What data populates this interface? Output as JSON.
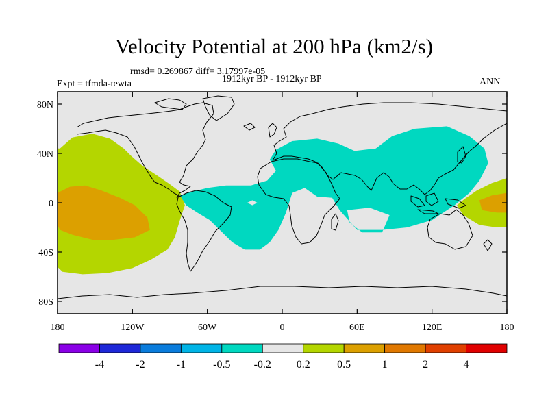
{
  "title": "Velocity Potential at 200 hPa (km2/s)",
  "stats": "rmsd= 0.269867 diff= 3.17997e-05",
  "left_label": "Expt = tfmda-tewta",
  "center_label": "1912kyr BP - 1912kyr BP",
  "right_label": "ANN",
  "map": {
    "lon_range": [
      -180,
      180
    ],
    "lat_range": [
      -90,
      90
    ],
    "x_ticks": [
      {
        "lon": -180,
        "label": "180"
      },
      {
        "lon": -120,
        "label": "120W"
      },
      {
        "lon": -60,
        "label": "60W"
      },
      {
        "lon": 0,
        "label": "0"
      },
      {
        "lon": 60,
        "label": "60E"
      },
      {
        "lon": 120,
        "label": "120E"
      },
      {
        "lon": 180,
        "label": "180"
      }
    ],
    "y_ticks": [
      {
        "lat": 80,
        "label": "80N"
      },
      {
        "lat": 40,
        "label": "40N"
      },
      {
        "lat": 0,
        "label": "0"
      },
      {
        "lat": -40,
        "label": "40S"
      },
      {
        "lat": -80,
        "label": "80S"
      }
    ],
    "regions": [
      {
        "name": "pacific-positive-0.2-0.5",
        "category": "0.2 to 0.5",
        "color": "#b4d600",
        "points": [
          [
            -178,
            44
          ],
          [
            -168,
            53
          ],
          [
            -152,
            56
          ],
          [
            -138,
            52
          ],
          [
            -127,
            44
          ],
          [
            -121,
            38
          ],
          [
            -112,
            30
          ],
          [
            -100,
            22
          ],
          [
            -90,
            15
          ],
          [
            -82,
            9
          ],
          [
            -78,
            -2
          ],
          [
            -82,
            -14
          ],
          [
            -86,
            -28
          ],
          [
            -92,
            -38
          ],
          [
            -105,
            -46
          ],
          [
            -120,
            -53
          ],
          [
            -140,
            -57
          ],
          [
            -160,
            -58
          ],
          [
            -176,
            -56
          ],
          [
            -180,
            -52
          ],
          [
            -180,
            44
          ]
        ]
      },
      {
        "name": "pacific-positive-0.5-1",
        "category": "0.5 to 1",
        "color": "#dca000",
        "points": [
          [
            -180,
            8
          ],
          [
            -170,
            13
          ],
          [
            -158,
            14
          ],
          [
            -145,
            10
          ],
          [
            -130,
            4
          ],
          [
            -118,
            -2
          ],
          [
            -108,
            -12
          ],
          [
            -106,
            -22
          ],
          [
            -118,
            -28
          ],
          [
            -135,
            -30
          ],
          [
            -152,
            -30
          ],
          [
            -168,
            -26
          ],
          [
            -178,
            -22
          ],
          [
            -180,
            -18
          ]
        ]
      },
      {
        "name": "west-pacific-positive-0.2-0.5",
        "category": "0.2 to 0.5",
        "color": "#b4d600",
        "points": [
          [
            180,
            20
          ],
          [
            168,
            16
          ],
          [
            156,
            10
          ],
          [
            146,
            3
          ],
          [
            140,
            -2
          ],
          [
            145,
            -10
          ],
          [
            158,
            -18
          ],
          [
            172,
            -20
          ],
          [
            180,
            -20
          ]
        ]
      },
      {
        "name": "west-pacific-positive-0.5-1",
        "category": "0.5 to 1",
        "color": "#dca000",
        "points": [
          [
            180,
            8
          ],
          [
            168,
            6
          ],
          [
            158,
            2
          ],
          [
            160,
            -6
          ],
          [
            172,
            -8
          ],
          [
            180,
            -8
          ]
        ]
      },
      {
        "name": "atlantic-africa-negative",
        "category": "-0.5 to -0.2",
        "color": "#00d8c0",
        "points": [
          [
            -82,
            6
          ],
          [
            -72,
            9
          ],
          [
            -60,
            12
          ],
          [
            -45,
            14
          ],
          [
            -25,
            14
          ],
          [
            -12,
            18
          ],
          [
            -5,
            26
          ],
          [
            -10,
            35
          ],
          [
            -5,
            43
          ],
          [
            8,
            50
          ],
          [
            28,
            52
          ],
          [
            45,
            48
          ],
          [
            58,
            42
          ],
          [
            75,
            44
          ],
          [
            88,
            54
          ],
          [
            106,
            60
          ],
          [
            132,
            62
          ],
          [
            150,
            54
          ],
          [
            162,
            44
          ],
          [
            165,
            32
          ],
          [
            158,
            18
          ],
          [
            150,
            8
          ],
          [
            138,
            -2
          ],
          [
            120,
            -14
          ],
          [
            100,
            -20
          ],
          [
            80,
            -22
          ],
          [
            60,
            -22
          ],
          [
            46,
            -6
          ],
          [
            40,
            4
          ],
          [
            28,
            5
          ],
          [
            18,
            12
          ],
          [
            8,
            8
          ],
          [
            3,
            -8
          ],
          [
            -3,
            -22
          ],
          [
            -10,
            -32
          ],
          [
            -18,
            -38
          ],
          [
            -30,
            -38
          ],
          [
            -40,
            -32
          ],
          [
            -48,
            -24
          ],
          [
            -58,
            -14
          ],
          [
            -68,
            -8
          ],
          [
            -77,
            -2
          ]
        ],
        "holes": [
          [
            [
              52,
              -6
            ],
            [
              70,
              -4
            ],
            [
              86,
              -10
            ],
            [
              80,
              -24
            ],
            [
              64,
              -24
            ],
            [
              54,
              -16
            ]
          ],
          [
            [
              -28,
              0
            ],
            [
              -24,
              2
            ],
            [
              -20,
              0
            ],
            [
              -24,
              -2
            ]
          ]
        ]
      }
    ],
    "coast_color": "#000000",
    "land_fill": "#e6e6e6"
  },
  "colorbar": {
    "bins": [
      {
        "color": "#8a00e6"
      },
      {
        "color": "#1e28d8"
      },
      {
        "color": "#0a7cdc"
      },
      {
        "color": "#00b4e6"
      },
      {
        "color": "#00d8c0"
      },
      {
        "color": "#e6e6e6"
      },
      {
        "color": "#b4d600"
      },
      {
        "color": "#dca000"
      },
      {
        "color": "#e07800"
      },
      {
        "color": "#e04000"
      },
      {
        "color": "#e00000"
      }
    ],
    "labels": [
      "-4",
      "-2",
      "-1",
      "-0.5",
      "-0.2",
      "0.2",
      "0.5",
      "1",
      "2",
      "4"
    ]
  }
}
